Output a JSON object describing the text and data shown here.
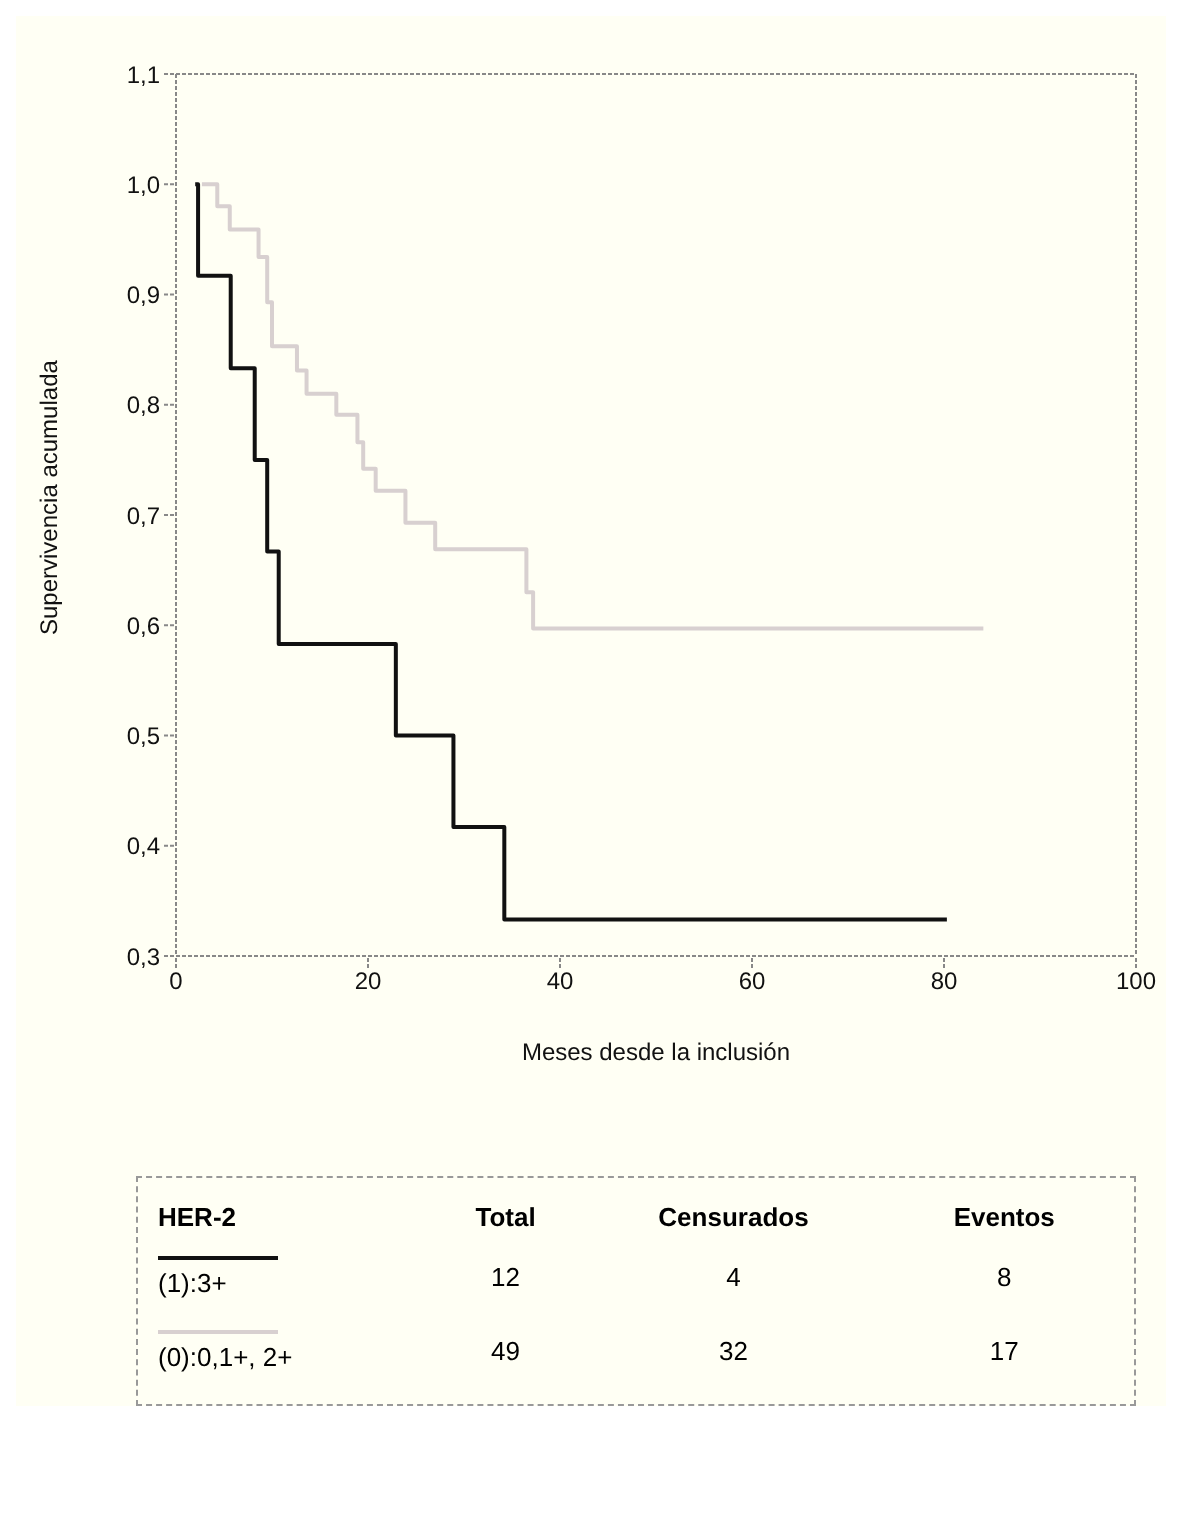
{
  "chart_data": {
    "type": "step",
    "xlabel": "Meses desde la inclusión",
    "ylabel": "Supervivencia acumulada",
    "xlim": [
      0,
      100
    ],
    "xticks": [
      0,
      20,
      40,
      60,
      80,
      100
    ],
    "ylim": [
      0.3,
      1.1
    ],
    "yticks": [
      {
        "value": 0.3,
        "label": "0,3"
      },
      {
        "value": 0.4,
        "label": "0,4"
      },
      {
        "value": 0.5,
        "label": "0,5"
      },
      {
        "value": 0.6,
        "label": "0,6"
      },
      {
        "value": 0.7,
        "label": "0,7"
      },
      {
        "value": 0.8,
        "label": "0,8"
      },
      {
        "value": 0.9,
        "label": "0,9"
      },
      {
        "value": 1.0,
        "label": "1,0"
      },
      {
        "value": 1.1,
        "label": "1,1"
      }
    ],
    "legend": "bottom",
    "legend_title": "HER-2",
    "series": [
      {
        "name": "(1):3+",
        "color": "#111111",
        "x": [
          2,
          2.3,
          5.7,
          8.2,
          9.5,
          10.7,
          22.9,
          28.9,
          34.2,
          80.3
        ],
        "values": [
          1.0,
          0.917,
          0.833,
          0.75,
          0.667,
          0.583,
          0.5,
          0.417,
          0.333,
          0.333
        ]
      },
      {
        "name": "(0):0,1+, 2+",
        "color": "#d8d0d0",
        "x": [
          2.7,
          4.3,
          5.6,
          8.6,
          9.5,
          10.0,
          12.6,
          13.6,
          16.7,
          18.9,
          19.5,
          20.8,
          23.9,
          27.0,
          36.5,
          37.2,
          84.1
        ],
        "values": [
          1.0,
          0.98,
          0.959,
          0.934,
          0.893,
          0.853,
          0.831,
          0.81,
          0.791,
          0.766,
          0.742,
          0.722,
          0.693,
          0.669,
          0.63,
          0.597,
          0.597
        ]
      }
    ],
    "annotations": [
      "Total",
      "Censurados",
      "Eventos",
      "12",
      "4",
      "8",
      "49",
      "32",
      "17"
    ]
  }
}
